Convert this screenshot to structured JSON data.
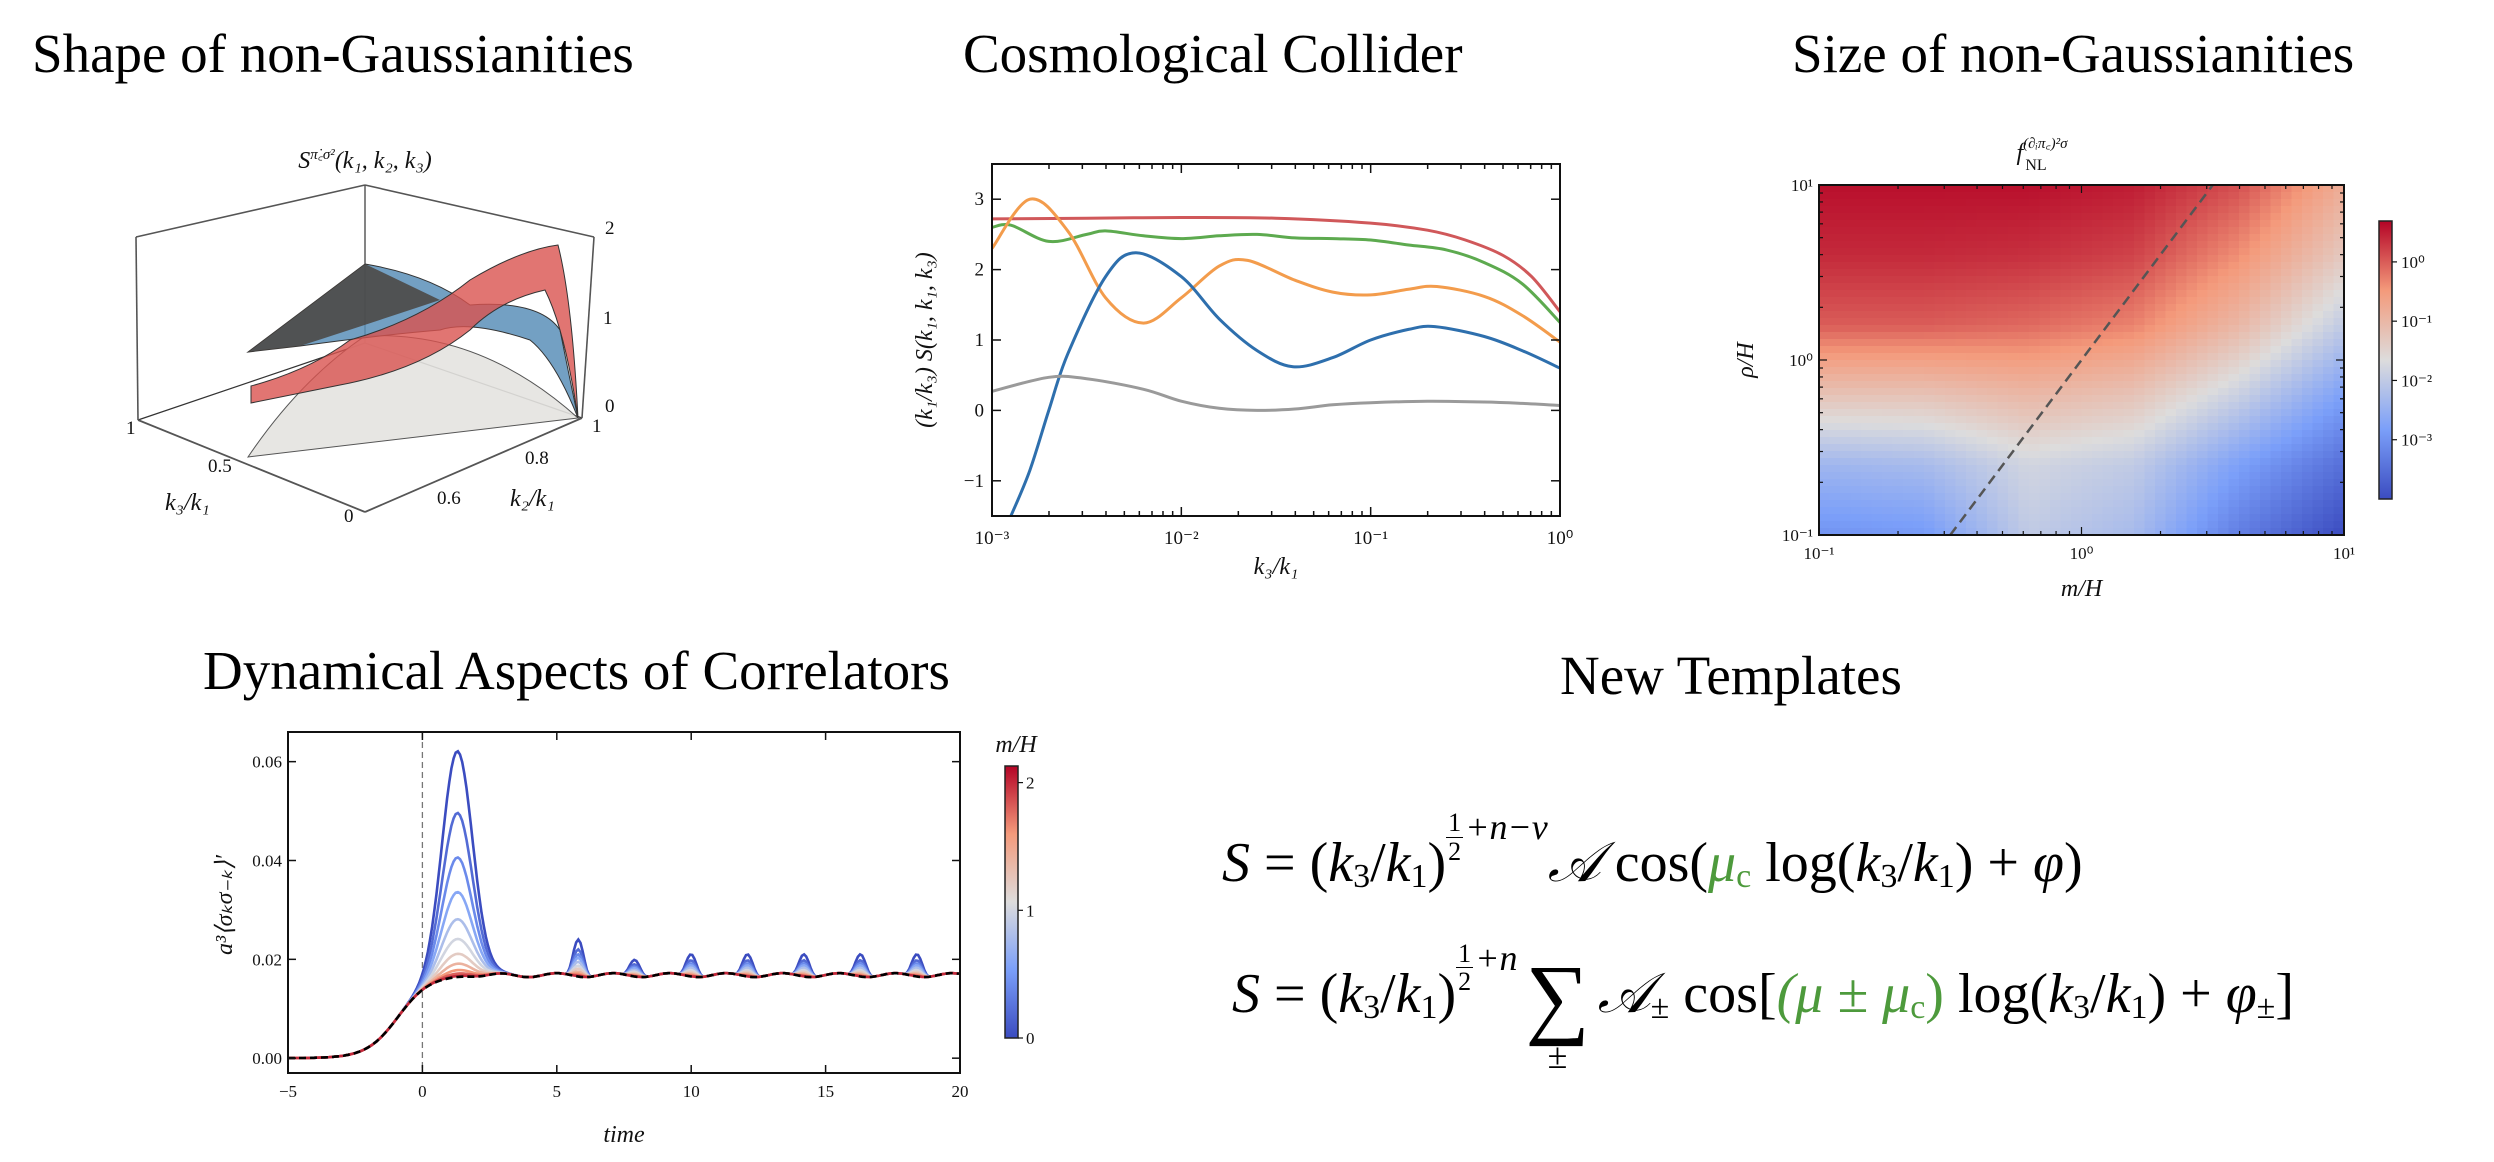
{
  "titles": {
    "shape": "Shape of non-Gaussianities",
    "collider": "Cosmological Collider",
    "size": "Size of non-Gaussianities",
    "dynamics": "Dynamical Aspects of Correlators",
    "templates": "New Templates"
  },
  "templates": {
    "accent_color": "#4d9a3c",
    "eq1": [
      {
        "t": "S",
        "s": "i"
      },
      {
        "t": " = ("
      },
      {
        "t": "k",
        "s": "i"
      },
      {
        "t": "3",
        "s": "sub"
      },
      {
        "t": "/"
      },
      {
        "t": "k",
        "s": "i"
      },
      {
        "t": "1",
        "s": "sub"
      },
      {
        "t": ")"
      },
      {
        "n": "1",
        "d": "2",
        "r": "+n−ν",
        "s": "exp"
      },
      {
        "t": "𝒜",
        "s": "i"
      },
      {
        "t": " cos("
      },
      {
        "t": "μ",
        "s": "ig"
      },
      {
        "t": "c",
        "s": "subg"
      },
      {
        "t": " log("
      },
      {
        "t": "k",
        "s": "i"
      },
      {
        "t": "3",
        "s": "sub"
      },
      {
        "t": "/"
      },
      {
        "t": "k",
        "s": "i"
      },
      {
        "t": "1",
        "s": "sub"
      },
      {
        "t": ") + "
      },
      {
        "t": "φ",
        "s": "i"
      },
      {
        "t": ")"
      }
    ],
    "eq2": [
      {
        "t": "S",
        "s": "i"
      },
      {
        "t": " = ("
      },
      {
        "t": "k",
        "s": "i"
      },
      {
        "t": "3",
        "s": "sub"
      },
      {
        "t": "/"
      },
      {
        "t": "k",
        "s": "i"
      },
      {
        "t": "1",
        "s": "sub"
      },
      {
        "t": ")"
      },
      {
        "n": "1",
        "d": "2",
        "r": "+n",
        "s": "exp"
      },
      {
        "t": "∑",
        "u": "±",
        "s": "sum"
      },
      {
        "t": "𝒜",
        "s": "i"
      },
      {
        "t": "±",
        "s": "sub"
      },
      {
        "t": " cos["
      },
      {
        "t": "(μ ± ",
        "s": "ig"
      },
      {
        "t": "μ",
        "s": "ig"
      },
      {
        "t": "c",
        "s": "subg"
      },
      {
        "t": ")",
        "s": "g"
      },
      {
        "t": " log("
      },
      {
        "t": "k",
        "s": "i"
      },
      {
        "t": "3",
        "s": "sub"
      },
      {
        "t": "/"
      },
      {
        "t": "k",
        "s": "i"
      },
      {
        "t": "1",
        "s": "sub"
      },
      {
        "t": ") + "
      },
      {
        "t": "φ",
        "s": "i"
      },
      {
        "t": "±",
        "s": "sub"
      },
      {
        "t": "]"
      }
    ]
  },
  "chart_data": [
    {
      "type": "surface3d",
      "title_main": "S",
      "title_sup": "π̇꜀σ²",
      "title_args": "(k₁, k₂, k₃)",
      "xlabel": "k₂/k₁",
      "ylabel": "k₃/k₁",
      "xticks": [
        "0.6",
        "0.8",
        "1"
      ],
      "yticks": [
        "0",
        "0.5",
        "1"
      ],
      "zticks": [
        "0",
        "1",
        "2"
      ],
      "surfaces": [
        {
          "color": "#d9534f"
        },
        {
          "color": "#5b8fb8"
        },
        {
          "color": "#e4e3e0"
        }
      ]
    },
    {
      "type": "line",
      "xscale": "log",
      "xlim": [
        0.001,
        1
      ],
      "ylim": [
        -1.5,
        3.5
      ],
      "xlabel": "k₃/k₁",
      "ylabel": "(k₁/k₃) S(k₁, k₁, k₃)",
      "xticks": [
        "10⁻³",
        "10⁻²",
        "10⁻¹",
        "10⁰"
      ],
      "yticks": [
        "−1",
        "0",
        "1",
        "2",
        "3"
      ],
      "ytick_values": [
        -1,
        0,
        1,
        2,
        3
      ],
      "series": [
        {
          "color": "#d0585a",
          "log10_x": [
            -3,
            -2.5,
            -2,
            -1.5,
            -1,
            -0.7,
            -0.5,
            -0.3,
            -0.15,
            0
          ],
          "y": [
            2.72,
            2.73,
            2.74,
            2.73,
            2.66,
            2.56,
            2.42,
            2.2,
            1.9,
            1.4
          ]
        },
        {
          "color": "#5daa4f",
          "log10_x": [
            -3,
            -2.9,
            -2.7,
            -2.5,
            -2.4,
            -2.2,
            -2,
            -1.8,
            -1.6,
            -1.4,
            -1.2,
            -1,
            -0.8,
            -0.6,
            -0.4,
            -0.2,
            0
          ],
          "y": [
            2.6,
            2.63,
            2.4,
            2.5,
            2.55,
            2.48,
            2.44,
            2.48,
            2.5,
            2.45,
            2.44,
            2.42,
            2.35,
            2.28,
            2.1,
            1.8,
            1.25
          ]
        },
        {
          "color": "#f39c4c",
          "log10_x": [
            -3,
            -2.8,
            -2.6,
            -2.4,
            -2.2,
            -2,
            -1.8,
            -1.65,
            -1.4,
            -1.2,
            -1,
            -0.8,
            -0.65,
            -0.4,
            -0.2,
            0
          ],
          "y": [
            2.3,
            3.0,
            2.55,
            1.6,
            1.24,
            1.6,
            2.05,
            2.13,
            1.85,
            1.68,
            1.64,
            1.72,
            1.76,
            1.62,
            1.35,
            0.97
          ]
        },
        {
          "color": "#2e6fad",
          "log10_x": [
            -2.9,
            -2.8,
            -2.7,
            -2.6,
            -2.4,
            -2.24,
            -2,
            -1.8,
            -1.6,
            -1.41,
            -1.2,
            -1,
            -0.8,
            -0.66,
            -0.4,
            -0.2,
            0
          ],
          "y": [
            -1.5,
            -0.85,
            0,
            0.8,
            1.9,
            2.24,
            1.9,
            1.3,
            0.85,
            0.62,
            0.75,
            1.0,
            1.15,
            1.19,
            1.05,
            0.85,
            0.6
          ]
        },
        {
          "color": "#9a9a9a",
          "log10_x": [
            -3,
            -2.7,
            -2.5,
            -2.2,
            -2,
            -1.8,
            -1.6,
            -1.4,
            -1.2,
            -1,
            -0.7,
            -0.4,
            -0.2,
            0
          ],
          "y": [
            0.27,
            0.47,
            0.45,
            0.3,
            0.13,
            0.03,
            0.0,
            0.02,
            0.08,
            0.11,
            0.13,
            0.12,
            0.1,
            0.07
          ]
        }
      ]
    },
    {
      "type": "heatmap",
      "xscale": "log",
      "yscale": "log",
      "title_main": "f",
      "title_sup": "(∂ᵢπ꜀)²σ",
      "title_sub": "NL",
      "xlabel": "m/H",
      "ylabel": "ρ/H",
      "xticks": [
        "10⁻¹",
        "10⁰",
        "10¹"
      ],
      "yticks": [
        "10⁻¹",
        "10⁰",
        "10¹"
      ],
      "xlim": [
        0.1,
        10
      ],
      "ylim": [
        0.1,
        10
      ],
      "grid_log10_x": [
        -1,
        -0.6,
        -0.2,
        0.2,
        0.6,
        1
      ],
      "grid_log10_y": [
        1,
        0.6,
        0.2,
        -0.2,
        -0.6,
        -1
      ],
      "log10_values": [
        [
          0.6,
          0.6,
          0.6,
          0.5,
          0.1,
          -0.8
        ],
        [
          0.4,
          0.4,
          0.35,
          0.2,
          -0.4,
          -1.3
        ],
        [
          0.0,
          0.0,
          -0.1,
          -0.3,
          -1.0,
          -2.0
        ],
        [
          -1.2,
          -1.2,
          -1.0,
          -1.2,
          -1.9,
          -2.8
        ],
        [
          -2.4,
          -2.3,
          -1.8,
          -2.0,
          -2.8,
          -3.5
        ],
        [
          -3.0,
          -2.9,
          -2.0,
          -2.3,
          -3.3,
          -4.0
        ]
      ],
      "colorbar_log10_range": [
        -4,
        0.69
      ],
      "colorbar_ticks": [
        "10⁰",
        "10⁻¹",
        "10⁻²",
        "10⁻³"
      ],
      "colorbar_tick_values": [
        0,
        -1,
        -2,
        -3
      ],
      "dashed_line": {
        "log10_x": [
          -0.5,
          0.5
        ],
        "log10_y": [
          -1,
          1
        ],
        "color": "#555555"
      }
    },
    {
      "type": "line",
      "xlabel": "time",
      "ylabel": "a³⟨σₖσ₋ₖ⟩′",
      "xlim": [
        -5,
        20
      ],
      "ylim": [
        -0.003,
        0.066
      ],
      "xticks": [
        "−5",
        "0",
        "5",
        "10",
        "15",
        "20"
      ],
      "xtick_values": [
        -5,
        0,
        5,
        10,
        15,
        20
      ],
      "yticks": [
        "0.00",
        "0.02",
        "0.04",
        "0.06"
      ],
      "ytick_values": [
        0,
        0.02,
        0.04,
        0.06
      ],
      "vline_x": 0,
      "colorbar_label": "m/H",
      "colorbar_ticks": [
        "0",
        "1",
        "2"
      ],
      "colorbar_tick_values": [
        0,
        1,
        2
      ],
      "colorbar_range": [
        0,
        2.13
      ],
      "series": [
        {
          "m_over_H": 0.0,
          "peak": 0.0625,
          "osc_amp": 0.0075
        },
        {
          "m_over_H": 0.2,
          "peak": 0.05,
          "osc_amp": 0.0055
        },
        {
          "m_over_H": 0.4,
          "peak": 0.041,
          "osc_amp": 0.0045
        },
        {
          "m_over_H": 0.6,
          "peak": 0.034,
          "osc_amp": 0.0038
        },
        {
          "m_over_H": 0.8,
          "peak": 0.0285,
          "osc_amp": 0.003
        },
        {
          "m_over_H": 1.0,
          "peak": 0.0245,
          "osc_amp": 0.0022
        },
        {
          "m_over_H": 1.2,
          "peak": 0.0215,
          "osc_amp": 0.0016
        },
        {
          "m_over_H": 1.4,
          "peak": 0.0195,
          "osc_amp": 0.001
        },
        {
          "m_over_H": 1.6,
          "peak": 0.0182,
          "osc_amp": 0.0006
        },
        {
          "m_over_H": 1.8,
          "peak": 0.0175,
          "osc_amp": 0.0003
        },
        {
          "m_over_H": 2.0,
          "peak": 0.017,
          "osc_amp": 0.0001
        }
      ],
      "reference_series": {
        "style": "dashed",
        "color": "#000000",
        "plateau": 0.0168
      }
    }
  ]
}
